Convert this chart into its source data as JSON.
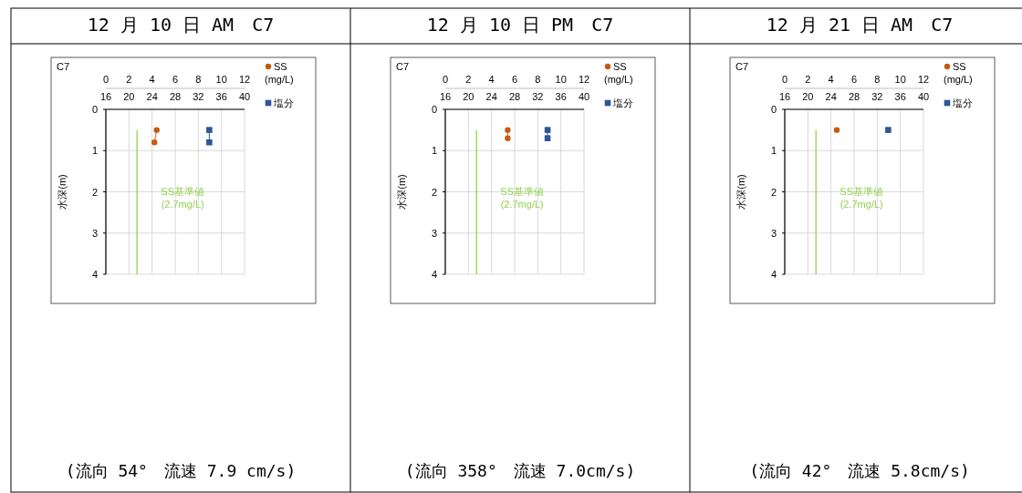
{
  "chart_data": [
    {
      "type": "line",
      "title": "12 月 10 日 AM　C7",
      "ylabel": "水深(m)",
      "annotations": [
        "C7",
        "(流向 54°　流速 7.9 cm/s)"
      ],
      "xlim": [
        0,
        12
      ],
      "xticks": [
        0,
        2,
        4,
        6,
        8,
        10,
        12
      ],
      "x2lim": [
        16,
        40
      ],
      "x2ticks": [
        16,
        20,
        24,
        28,
        32,
        36,
        40
      ],
      "ylim": [
        4,
        0
      ],
      "yticks": [
        0,
        1,
        2,
        3,
        4
      ],
      "grid": true,
      "legend": "top right",
      "series": [
        {
          "name": "SS (mg/L)",
          "color": "#c55a11",
          "marker": "circle",
          "x": [
            4.4,
            4.2
          ],
          "values": [
            0.5,
            0.8
          ]
        },
        {
          "name": "塩分",
          "color": "#2f5597",
          "marker": "square",
          "axis": "x2",
          "x": [
            33.9,
            33.9
          ],
          "values": [
            0.5,
            0.8
          ]
        },
        {
          "name": "SS基準値 (2.7mg/L)",
          "color": "#92d050",
          "marker": "none",
          "x": [
            2.7,
            2.7
          ],
          "values": [
            0.5,
            4
          ]
        }
      ]
    },
    {
      "type": "line",
      "title": "12 月 10 日 PM　C7",
      "ylabel": "水深(m)",
      "annotations": [
        "C7",
        "(流向 358°　流速 7.0cm/s)"
      ],
      "xlim": [
        0,
        12
      ],
      "xticks": [
        0,
        2,
        4,
        6,
        8,
        10,
        12
      ],
      "x2lim": [
        16,
        40
      ],
      "x2ticks": [
        16,
        20,
        24,
        28,
        32,
        36,
        40
      ],
      "ylim": [
        4,
        0
      ],
      "yticks": [
        0,
        1,
        2,
        3,
        4
      ],
      "grid": true,
      "legend": "top right",
      "series": [
        {
          "name": "SS (mg/L)",
          "color": "#c55a11",
          "marker": "circle",
          "x": [
            5.4,
            5.4
          ],
          "values": [
            0.5,
            0.7
          ]
        },
        {
          "name": "塩分",
          "color": "#2f5597",
          "marker": "square",
          "axis": "x2",
          "x": [
            33.7,
            33.7
          ],
          "values": [
            0.5,
            0.7
          ]
        },
        {
          "name": "SS基準値 (2.7mg/L)",
          "color": "#92d050",
          "marker": "none",
          "x": [
            2.7,
            2.7
          ],
          "values": [
            0.5,
            4
          ]
        }
      ]
    },
    {
      "type": "line",
      "title": "12 月 21 日 AM　C7",
      "ylabel": "水深(m)",
      "annotations": [
        "C7",
        "(流向 42°　流速 5.8cm/s)"
      ],
      "xlim": [
        0,
        12
      ],
      "xticks": [
        0,
        2,
        4,
        6,
        8,
        10,
        12
      ],
      "x2lim": [
        16,
        40
      ],
      "x2ticks": [
        16,
        20,
        24,
        28,
        32,
        36,
        40
      ],
      "ylim": [
        4,
        0
      ],
      "yticks": [
        0,
        1,
        2,
        3,
        4
      ],
      "grid": true,
      "legend": "top right",
      "series": [
        {
          "name": "SS (mg/L)",
          "color": "#c55a11",
          "marker": "circle",
          "x": [
            4.5
          ],
          "values": [
            0.5
          ]
        },
        {
          "name": "塩分",
          "color": "#2f5597",
          "marker": "square",
          "axis": "x2",
          "x": [
            33.9
          ],
          "values": [
            0.5
          ]
        },
        {
          "name": "SS基準値 (2.7mg/L)",
          "color": "#92d050",
          "marker": "none",
          "x": [
            2.7,
            2.7
          ],
          "values": [
            0.5,
            4
          ]
        }
      ]
    }
  ]
}
